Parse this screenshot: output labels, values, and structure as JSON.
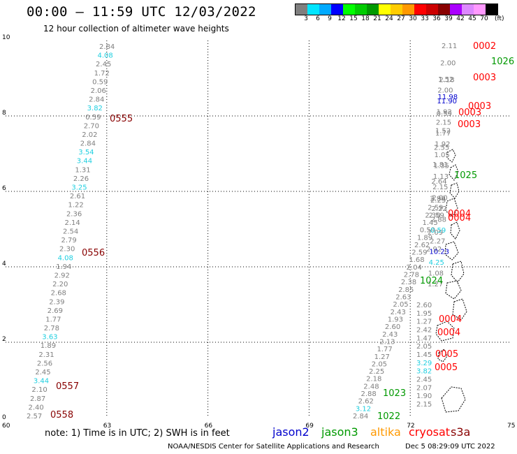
{
  "header": {
    "title": "00:00 – 11:59 UTC 12/03/2022",
    "subtitle": "12 hour collection of altimeter wave heights"
  },
  "scale": {
    "unit": "(ft)",
    "colors": [
      "#7f7f7f",
      "#00e5ff",
      "#00aaff",
      "#0000ff",
      "#00ff00",
      "#00cc00",
      "#009900",
      "#ffff00",
      "#ffcc00",
      "#ff9900",
      "#ff0000",
      "#cc0000",
      "#880000",
      "#aa00ff",
      "#dd88ff",
      "#ff99ff",
      "#000000"
    ],
    "labels": [
      "3",
      "6",
      "9",
      "12",
      "15",
      "18",
      "21",
      "24",
      "27",
      "30",
      "33",
      "36",
      "39",
      "42",
      "45",
      "70",
      "(ft)"
    ]
  },
  "axes": {
    "x_ticks": [
      60,
      63,
      66,
      69,
      72,
      75
    ],
    "y_ticks": [
      0,
      2,
      4,
      6,
      8,
      10
    ],
    "xlim": [
      60,
      75
    ],
    "ylim": [
      0,
      10
    ]
  },
  "track_a": [
    {
      "t": "2.84",
      "c": "#7f7f7f"
    },
    {
      "t": "4.08",
      "c": "#1ecfe0"
    },
    {
      "t": "2.45",
      "c": "#7f7f7f"
    },
    {
      "t": "1.72",
      "c": "#7f7f7f"
    },
    {
      "t": "0.59",
      "c": "#7f7f7f"
    },
    {
      "t": "2.06",
      "c": "#7f7f7f"
    },
    {
      "t": "2.84",
      "c": "#7f7f7f"
    },
    {
      "t": "3.82",
      "c": "#1ecfe0"
    },
    {
      "t": "0.59",
      "c": "#7f7f7f"
    },
    {
      "t": "2.70",
      "c": "#7f7f7f"
    },
    {
      "t": "2.02",
      "c": "#7f7f7f"
    },
    {
      "t": "2.84",
      "c": "#7f7f7f"
    },
    {
      "t": "3.54",
      "c": "#1ecfe0"
    },
    {
      "t": "3.44",
      "c": "#1ecfe0"
    },
    {
      "t": "1.31",
      "c": "#7f7f7f"
    },
    {
      "t": "2.26",
      "c": "#7f7f7f"
    },
    {
      "t": "3.25",
      "c": "#1ecfe0"
    },
    {
      "t": "2.61",
      "c": "#7f7f7f"
    },
    {
      "t": "1.22",
      "c": "#7f7f7f"
    },
    {
      "t": "2.36",
      "c": "#7f7f7f"
    },
    {
      "t": "2.14",
      "c": "#7f7f7f"
    },
    {
      "t": "2.54",
      "c": "#7f7f7f"
    },
    {
      "t": "2.79",
      "c": "#7f7f7f"
    },
    {
      "t": "2.30",
      "c": "#7f7f7f"
    },
    {
      "t": "4.08",
      "c": "#1ecfe0"
    },
    {
      "t": "1.94",
      "c": "#7f7f7f"
    },
    {
      "t": "2.92",
      "c": "#7f7f7f"
    },
    {
      "t": "2.20",
      "c": "#7f7f7f"
    },
    {
      "t": "2.68",
      "c": "#7f7f7f"
    },
    {
      "t": "2.39",
      "c": "#7f7f7f"
    },
    {
      "t": "2.69",
      "c": "#7f7f7f"
    },
    {
      "t": "1.77",
      "c": "#7f7f7f"
    },
    {
      "t": "2.78",
      "c": "#7f7f7f"
    },
    {
      "t": "3.63",
      "c": "#1ecfe0"
    },
    {
      "t": "1.89",
      "c": "#7f7f7f"
    },
    {
      "t": "2.31",
      "c": "#7f7f7f"
    },
    {
      "t": "2.56",
      "c": "#7f7f7f"
    },
    {
      "t": "2.45",
      "c": "#7f7f7f"
    },
    {
      "t": "3.44",
      "c": "#1ecfe0"
    },
    {
      "t": "2.10",
      "c": "#7f7f7f"
    },
    {
      "t": "2.87",
      "c": "#7f7f7f"
    },
    {
      "t": "2.40",
      "c": "#7f7f7f"
    },
    {
      "t": "2.57",
      "c": "#7f7f7f"
    }
  ],
  "track_b": [
    {
      "t": "2.84",
      "c": "#7f7f7f"
    },
    {
      "t": "3.12",
      "c": "#1ecfe0"
    },
    {
      "t": "2.62",
      "c": "#7f7f7f"
    },
    {
      "t": "2.88",
      "c": "#7f7f7f"
    },
    {
      "t": "2.48",
      "c": "#7f7f7f"
    },
    {
      "t": "2.18",
      "c": "#7f7f7f"
    },
    {
      "t": "2.25",
      "c": "#7f7f7f"
    },
    {
      "t": "2.05",
      "c": "#7f7f7f"
    },
    {
      "t": "1.27",
      "c": "#7f7f7f"
    },
    {
      "t": "1.77",
      "c": "#7f7f7f"
    },
    {
      "t": "2.13",
      "c": "#7f7f7f"
    },
    {
      "t": "2.43",
      "c": "#7f7f7f"
    },
    {
      "t": "2.60",
      "c": "#7f7f7f"
    },
    {
      "t": "1.93",
      "c": "#7f7f7f"
    },
    {
      "t": "2.43",
      "c": "#7f7f7f"
    },
    {
      "t": "2.05",
      "c": "#7f7f7f"
    },
    {
      "t": "2.63",
      "c": "#7f7f7f"
    },
    {
      "t": "2.85",
      "c": "#7f7f7f"
    },
    {
      "t": "2.38",
      "c": "#7f7f7f"
    },
    {
      "t": "2.78",
      "c": "#7f7f7f"
    },
    {
      "t": "2.04",
      "c": "#7f7f7f"
    },
    {
      "t": "1.68",
      "c": "#7f7f7f"
    },
    {
      "t": "2.59",
      "c": "#7f7f7f"
    },
    {
      "t": "2.62",
      "c": "#7f7f7f"
    },
    {
      "t": "1.89",
      "c": "#7f7f7f"
    },
    {
      "t": "0.59",
      "c": "#7f7f7f"
    },
    {
      "t": "1.45",
      "c": "#7f7f7f"
    },
    {
      "t": "2.30",
      "c": "#7f7f7f"
    },
    {
      "t": "2.59",
      "c": "#7f7f7f"
    },
    {
      "t": "2.25",
      "c": "#7f7f7f"
    }
  ],
  "track_c": [
    {
      "t": "2.11",
      "c": "#7f7f7f"
    },
    {
      "t": "2.00",
      "c": "#7f7f7f"
    },
    {
      "t": "2.18",
      "c": "#7f7f7f"
    },
    {
      "t": "11.98",
      "c": "#0000cc"
    },
    {
      "t": "0.59",
      "c": "#7f7f7f"
    },
    {
      "t": "1.52",
      "c": "#7f7f7f"
    },
    {
      "t": "2.55",
      "c": "#7f7f7f"
    },
    {
      "t": "1.81",
      "c": "#7f7f7f"
    },
    {
      "t": "2.64",
      "c": "#7f7f7f"
    },
    {
      "t": "2.90",
      "c": "#7f7f7f"
    },
    {
      "t": "2.59",
      "c": "#7f7f7f"
    },
    {
      "t": "2.09",
      "c": "#7f7f7f"
    },
    {
      "t": "2.92",
      "c": "#7f7f7f"
    }
  ],
  "track_d": [
    {
      "t": "1.52",
      "c": "#7f7f7f"
    },
    {
      "t": "2.00",
      "c": "#7f7f7f"
    },
    {
      "t": "11.90",
      "c": "#0000cc"
    },
    {
      "t": "1.92",
      "c": "#7f7f7f"
    },
    {
      "t": "2.15",
      "c": "#7f7f7f"
    },
    {
      "t": "1.77",
      "c": "#7f7f7f"
    },
    {
      "t": "1.92",
      "c": "#7f7f7f"
    },
    {
      "t": "1.05",
      "c": "#7f7f7f"
    },
    {
      "t": "1.35",
      "c": "#7f7f7f"
    },
    {
      "t": "1.13",
      "c": "#7f7f7f"
    },
    {
      "t": "2.15",
      "c": "#7f7f7f"
    },
    {
      "t": "2.00",
      "c": "#7f7f7f"
    },
    {
      "t": "2.22",
      "c": "#7f7f7f"
    },
    {
      "t": "2.88",
      "c": "#7f7f7f"
    },
    {
      "t": "0.59",
      "c": "#1ecfe0"
    },
    {
      "t": "2.27",
      "c": "#7f7f7f"
    },
    {
      "t": "10.23",
      "c": "#0000cc"
    },
    {
      "t": "4.25",
      "c": "#1ecfe0"
    },
    {
      "t": "1.08",
      "c": "#7f7f7f"
    },
    {
      "t": "1.27",
      "c": "#7f7f7f"
    }
  ],
  "track_e": [
    {
      "t": "2.60",
      "c": "#7f7f7f"
    },
    {
      "t": "1.95",
      "c": "#7f7f7f"
    },
    {
      "t": "1.27",
      "c": "#7f7f7f"
    },
    {
      "t": "2.42",
      "c": "#7f7f7f"
    },
    {
      "t": "1.47",
      "c": "#7f7f7f"
    },
    {
      "t": "2.05",
      "c": "#7f7f7f"
    },
    {
      "t": "1.45",
      "c": "#7f7f7f"
    },
    {
      "t": "3.29",
      "c": "#1ecfe0"
    },
    {
      "t": "3.82",
      "c": "#1ecfe0"
    },
    {
      "t": "2.45",
      "c": "#7f7f7f"
    },
    {
      "t": "2.07",
      "c": "#7f7f7f"
    },
    {
      "t": "1.90",
      "c": "#7f7f7f"
    },
    {
      "t": "2.15",
      "c": "#7f7f7f"
    }
  ],
  "passes": [
    {
      "t": "0555",
      "c": "#880000"
    },
    {
      "t": "0556",
      "c": "#880000"
    },
    {
      "t": "0557",
      "c": "#880000"
    },
    {
      "t": "0558",
      "c": "#880000"
    },
    {
      "t": "1022",
      "c": "#009900"
    },
    {
      "t": "1023",
      "c": "#009900"
    },
    {
      "t": "1024",
      "c": "#009900"
    },
    {
      "t": "1025",
      "c": "#009900"
    },
    {
      "t": "1026",
      "c": "#009900"
    },
    {
      "t": "0002",
      "c": "#ff0000"
    },
    {
      "t": "0003",
      "c": "#ff0000"
    },
    {
      "t": "0003",
      "c": "#ff0000"
    },
    {
      "t": "0003",
      "c": "#ff0000"
    },
    {
      "t": "0003",
      "c": "#ff0000"
    },
    {
      "t": "0004",
      "c": "#ff0000"
    },
    {
      "t": "0004",
      "c": "#ff0000"
    },
    {
      "t": "0004",
      "c": "#ff0000"
    },
    {
      "t": "0004",
      "c": "#ff0000"
    },
    {
      "t": "0005",
      "c": "#ff0000"
    },
    {
      "t": "0005",
      "c": "#ff0000"
    }
  ],
  "footer": {
    "note": "note: 1) Time is in UTC; 2) SWH is in feet",
    "legend": [
      {
        "name": "jason2",
        "color": "#0000cc"
      },
      {
        "name": "jason3",
        "color": "#009900"
      },
      {
        "name": "altika",
        "color": "#ff9900"
      },
      {
        "name": "cryosat",
        "color": "#ff0000"
      },
      {
        "name": "s3a",
        "color": "#880000"
      }
    ],
    "credit": "NOAA/NESDIS Center for Satellite Applications and Research",
    "date": "Dec  5 08:29:09 UTC 2022"
  }
}
